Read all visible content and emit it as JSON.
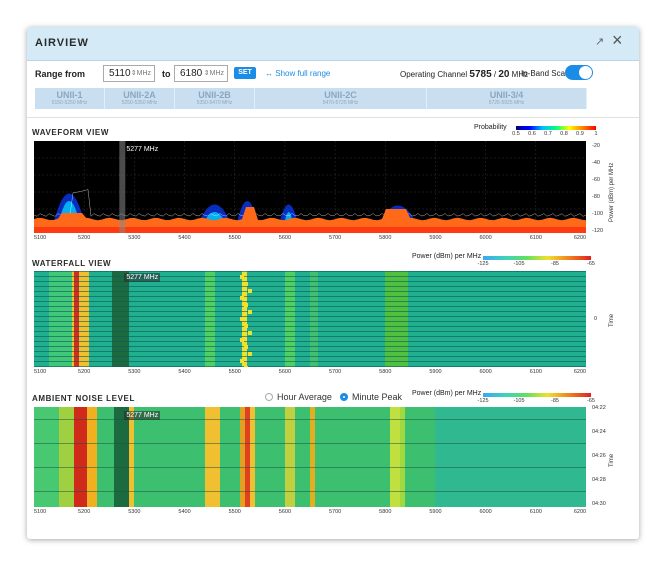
{
  "window": {
    "title": "AIRVIEW"
  },
  "range": {
    "from_label": "Range from",
    "from_value": "5110",
    "to_label": "to",
    "to_value": "6180",
    "unit": "MHz",
    "set_label": "SET",
    "show_full_label": "Show full range",
    "operating_label": "Operating Channel",
    "operating_freq": "5785",
    "operating_width": "20",
    "operating_unit": "MHz",
    "inband_label": "In-Band Scan",
    "inband_on": true
  },
  "bands": [
    {
      "name": "UNII-1",
      "range": "5150-5250 MHz"
    },
    {
      "name": "UNII-2A",
      "range": "5250-5350 MHz"
    },
    {
      "name": "UNII-2B",
      "range": "5350-5470 MHz"
    },
    {
      "name": "UNII-2C",
      "range": "5470-5725 MHz"
    },
    {
      "name": "UNII-3/4",
      "range": "5725-5925 MHz"
    }
  ],
  "x_ticks": [
    "5100",
    "5200",
    "5300",
    "5400",
    "5500",
    "5600",
    "5700",
    "5800",
    "5900",
    "6000",
    "6100",
    "6200"
  ],
  "marker": {
    "label": "5277 MHz",
    "freq": 5277
  },
  "waveform": {
    "section_title": "WAVEFORM VIEW",
    "legend_title": "Probability",
    "legend_ticks": [
      "0.5",
      "0.6",
      "0.7",
      "0.8",
      "0.9",
      "1"
    ],
    "y_ticks": [
      "-20",
      "-40",
      "-60",
      "-80",
      "-100",
      "-120"
    ],
    "y_label": "Power (dBm) per MHz"
  },
  "waterfall": {
    "section_title": "WATERFALL VIEW",
    "legend_title": "Power (dBm) per MHz",
    "legend_ticks": [
      "-125",
      "-105",
      "-85",
      "-65"
    ],
    "y_tick": "0",
    "y_label": "Time"
  },
  "ambient": {
    "section_title": "AMBIENT NOISE LEVEL",
    "radio_hour": "Hour Average",
    "radio_minute": "Minute Peak",
    "selected": "minute",
    "legend_title": "Power (dBm) per MHz",
    "legend_ticks": [
      "-125",
      "-105",
      "-85",
      "-65"
    ],
    "y_ticks": [
      "04:22",
      "04:24",
      "04:26",
      "04:28",
      "04:30"
    ],
    "y_label": "Time"
  },
  "colors": {
    "accent": "#1b8de6",
    "titlebar": "#d4ebf7",
    "band_bg": "#c9dff0"
  }
}
